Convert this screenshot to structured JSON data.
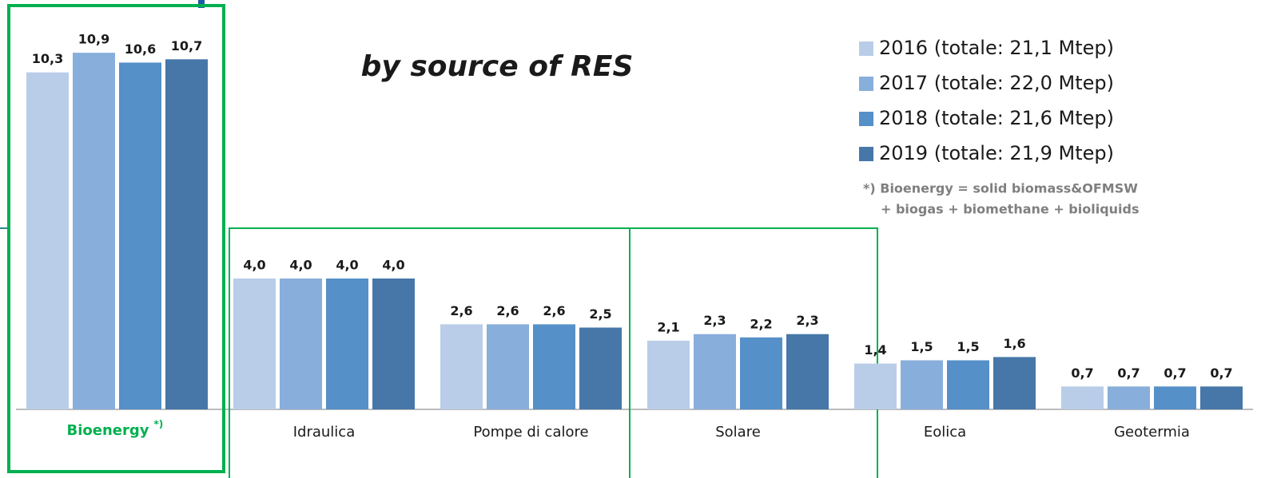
{
  "chart_data": {
    "type": "bar",
    "title": "by source of RES",
    "categories": [
      "Bioenergy",
      "Idraulica",
      "Pompe di calore",
      "Solare",
      "Eolica",
      "Geotermia"
    ],
    "category_marker": "*)",
    "note": [
      "*) Bioenergy = solid biomass&OFMSW",
      "+ biogas + biomethane + bioliquids"
    ],
    "series": [
      {
        "name": "2016 (totale: 21,1 Mtep)",
        "color": "#b9cde8",
        "values": [
          10.3,
          4.0,
          2.6,
          2.1,
          1.4,
          0.7
        ],
        "value_labels": [
          "10,3",
          "4,0",
          "2,6",
          "2,1",
          "1,4",
          "0,7"
        ]
      },
      {
        "name": "2017 (totale: 22,0 Mtep)",
        "color": "#88aedb",
        "values": [
          10.9,
          4.0,
          2.6,
          2.3,
          1.5,
          0.7
        ],
        "value_labels": [
          "10,9",
          "4,0",
          "2,6",
          "2,3",
          "1,5",
          "0,7"
        ]
      },
      {
        "name": "2018 (totale: 21,6 Mtep)",
        "color": "#5590c8",
        "values": [
          10.6,
          4.0,
          2.6,
          2.2,
          1.5,
          0.7
        ],
        "value_labels": [
          "10,6",
          "4,0",
          "2,6",
          "2,2",
          "1,5",
          "0,7"
        ]
      },
      {
        "name": "2019 (totale: 21,9 Mtep)",
        "color": "#4677a8",
        "values": [
          10.7,
          4.0,
          2.5,
          2.3,
          1.6,
          0.7
        ],
        "value_labels": [
          "10,7",
          "4,0",
          "2,5",
          "2,3",
          "1,6",
          "0,7"
        ]
      }
    ]
  }
}
